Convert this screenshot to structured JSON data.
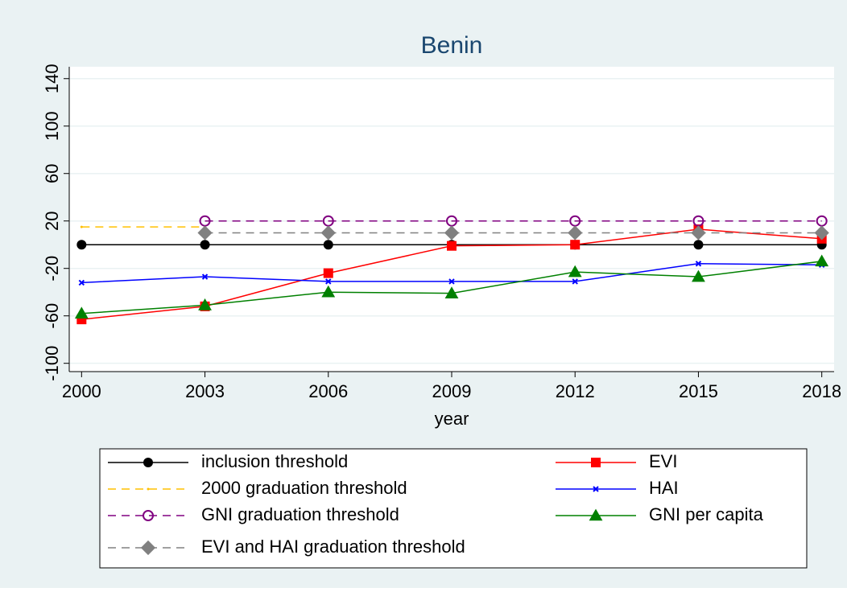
{
  "chart_data": {
    "type": "line",
    "title": "Benin",
    "xlabel": "year",
    "x": [
      2000,
      2003,
      2006,
      2009,
      2012,
      2015,
      2018
    ],
    "xlim": [
      1999.7,
      2018.3
    ],
    "xticks": [
      2000,
      2003,
      2006,
      2009,
      2012,
      2015,
      2018
    ],
    "ylim": [
      -107,
      150
    ],
    "yticks": [
      -100,
      -60,
      -20,
      20,
      60,
      100,
      140
    ],
    "grid": true,
    "series": [
      {
        "name": "inclusion threshold",
        "color": "#000000",
        "marker": "circle",
        "dashed": false,
        "values": [
          0,
          0,
          0,
          0,
          0,
          0,
          0
        ]
      },
      {
        "name": "EVI",
        "color": "#ff0000",
        "marker": "square",
        "dashed": false,
        "values": [
          -63,
          -52,
          -24,
          -1,
          0,
          13,
          5
        ]
      },
      {
        "name": "2000 graduation threshold",
        "color": "#ffc000",
        "marker": "dot",
        "dashed": true,
        "values": [
          15,
          15,
          null,
          null,
          null,
          null,
          null
        ]
      },
      {
        "name": "HAI",
        "color": "#0000ff",
        "marker": "x",
        "dashed": false,
        "values": [
          -32,
          -27,
          -31,
          -31,
          -31,
          -16,
          -17
        ]
      },
      {
        "name": "GNI graduation threshold",
        "color": "#800080",
        "marker": "hollow-circle",
        "dashed": true,
        "values": [
          null,
          20,
          20,
          20,
          20,
          20,
          20
        ]
      },
      {
        "name": "GNI per capita",
        "color": "#008000",
        "marker": "triangle",
        "dashed": false,
        "values": [
          -58,
          -51,
          -40,
          -41,
          -23,
          -27,
          -14
        ]
      },
      {
        "name": "EVI and HAI graduation threshold",
        "color": "#808080",
        "marker": "diamond",
        "dashed": true,
        "values": [
          null,
          10,
          10,
          10,
          10,
          10,
          10
        ]
      }
    ]
  }
}
